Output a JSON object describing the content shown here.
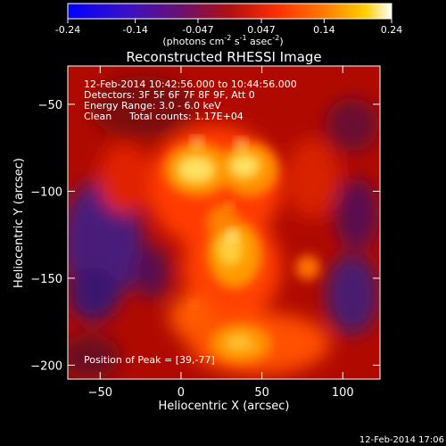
{
  "colorbar": {
    "tick_labels": [
      "-0.24",
      "-0.14",
      "-0.047",
      "0.047",
      "0.14",
      "0.24"
    ],
    "tick_values": [
      -0.24,
      -0.14,
      -0.047,
      0.047,
      0.14,
      0.24
    ],
    "range": [
      -0.24,
      0.24
    ],
    "units_prefix": "(photons cm",
    "units_sup1": "-2",
    "units_mid": " s",
    "units_sup2": "-1",
    "units_mid2": " asec",
    "units_sup3": "-2",
    "units_suffix": ")"
  },
  "title": "Reconstructed RHESSI Image",
  "annotations": {
    "time_range": "12-Feb-2014 10:42:56.000 to 10:44:56.000",
    "detectors": "Detectors: 3F 5F 6F 7F 8F 9F, Att 0",
    "energy": "Energy Range: 3.0 - 6.0 keV",
    "clean": "Clean",
    "total_counts": "Total counts: 1.17E+04",
    "peak": "Position of Peak = [39,-77]"
  },
  "footer_timestamp": "12-Feb-2014 17:06",
  "chart_data": {
    "type": "heatmap",
    "xlabel": "Heliocentric X (arcsec)",
    "ylabel": "Heliocentric Y (arcsec)",
    "xlim": [
      -70,
      123
    ],
    "ylim": [
      -208,
      -28
    ],
    "x_ticks": [
      -50,
      0,
      50,
      100
    ],
    "y_ticks": [
      -50,
      -100,
      -150,
      -200
    ],
    "x_tick_labels": [
      "−50",
      "0",
      "50",
      "100"
    ],
    "y_tick_labels": [
      "−50",
      "−100",
      "−150",
      "−200"
    ],
    "peak": [
      39,
      -77
    ],
    "sources": [
      {
        "x": 10,
        "y": -72,
        "value": 0.24
      },
      {
        "x": 37,
        "y": -73,
        "value": 0.24
      },
      {
        "x": 32,
        "y": -125,
        "value": 0.2
      },
      {
        "x": 30,
        "y": -108,
        "value": 0.14
      },
      {
        "x": 45,
        "y": -190,
        "value": 0.14
      },
      {
        "x": 8,
        "y": -165,
        "value": 0.1
      }
    ]
  }
}
